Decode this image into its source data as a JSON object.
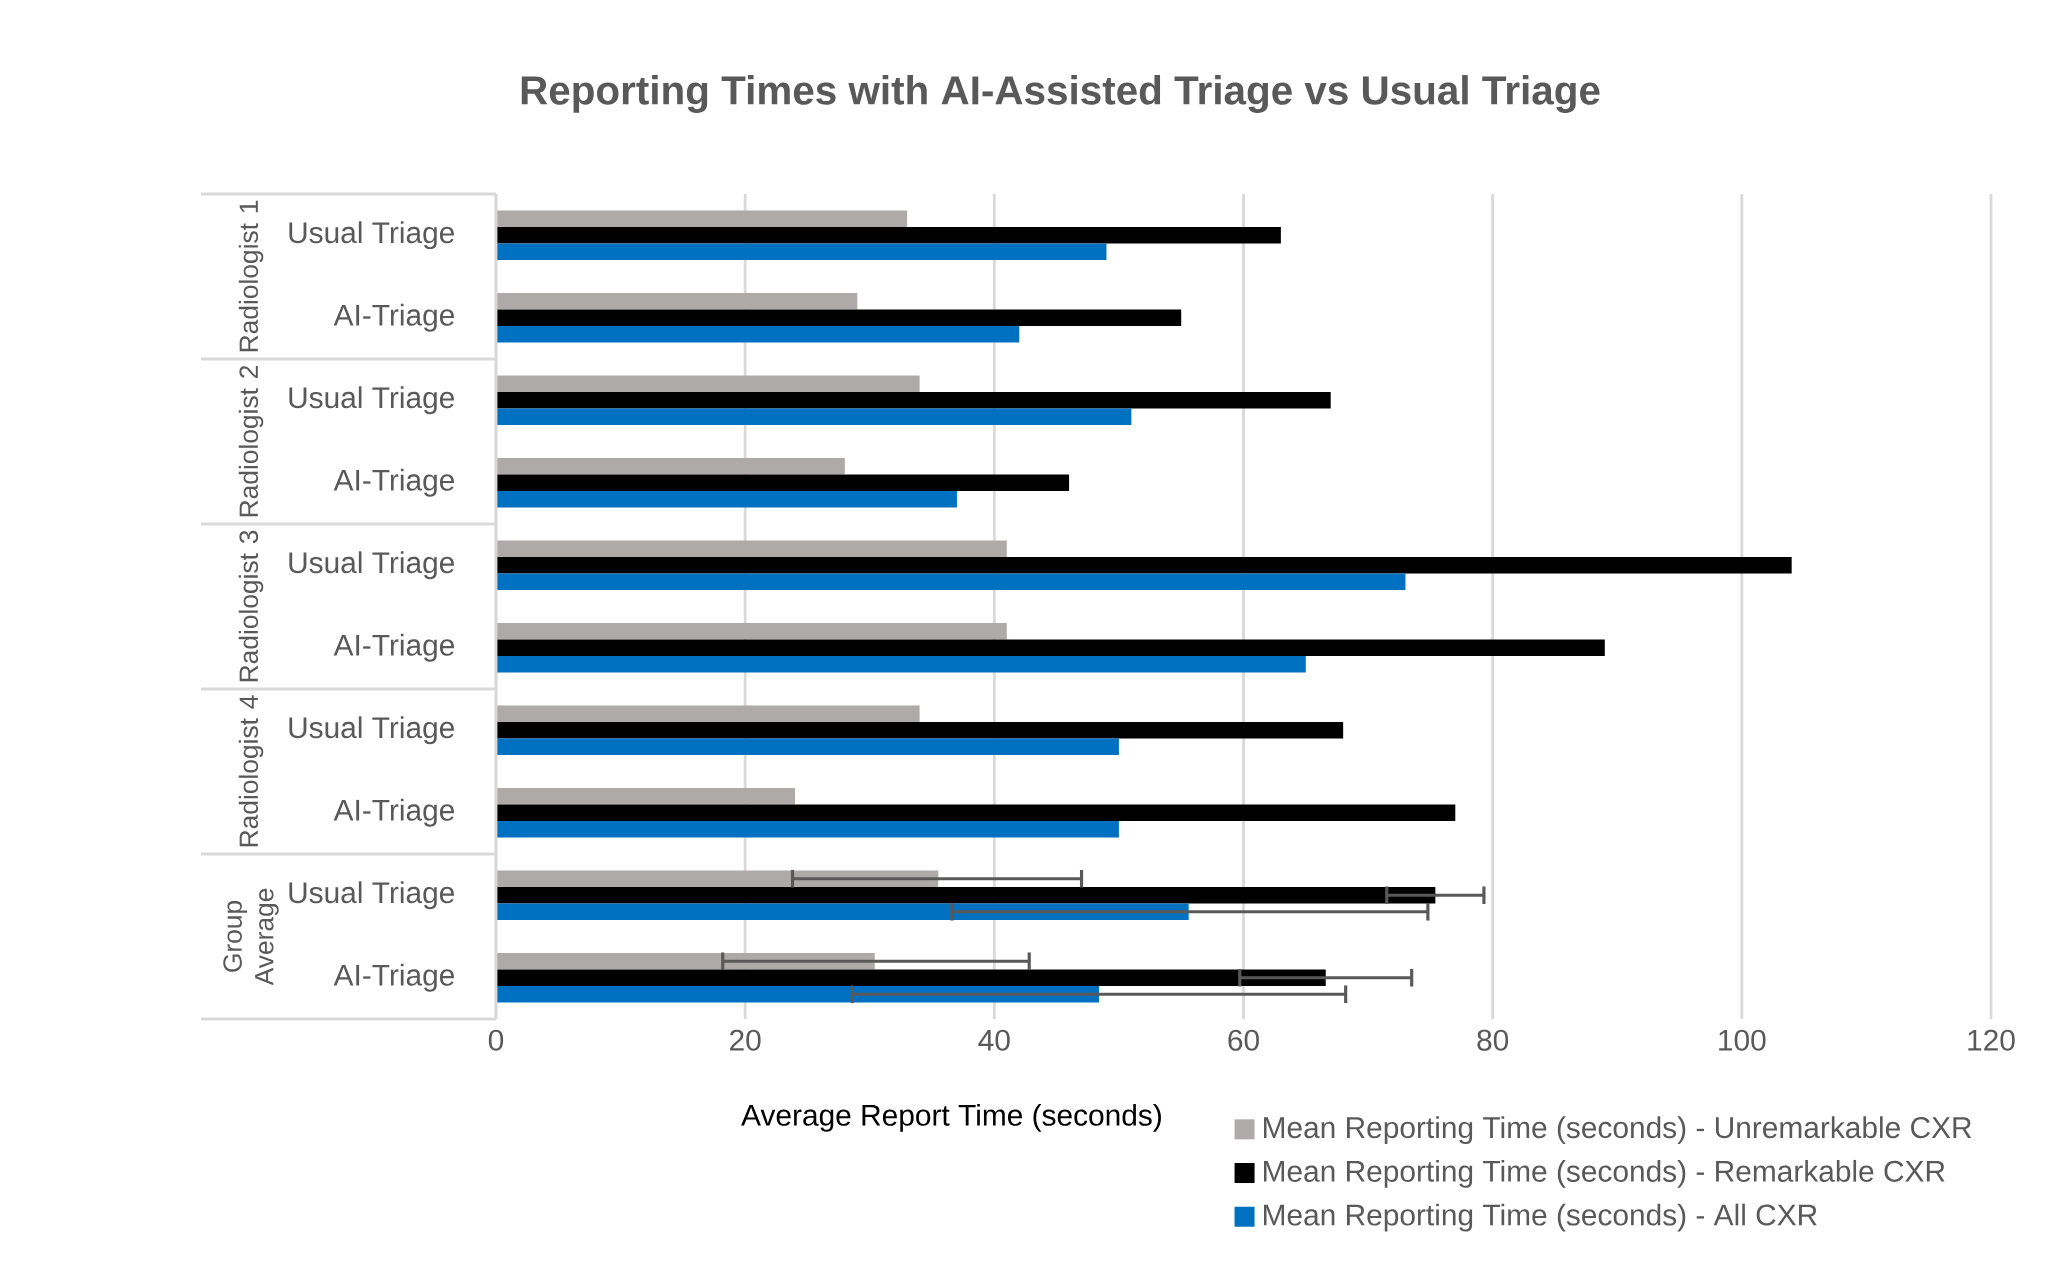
{
  "chart_data": {
    "type": "bar",
    "orientation": "horizontal",
    "title": "Reporting Times with AI-Assisted Triage vs Usual Triage",
    "xlabel": "Average Report Time (seconds)",
    "categories": [
      "Usual Triage",
      "AI-Triage",
      "Usual Triage",
      "AI-Triage",
      "Usual Triage",
      "AI-Triage",
      "Usual Triage",
      "AI-Triage",
      "Usual Triage",
      "AI-Triage"
    ],
    "annotations": [
      "Radiologist 1",
      "Radiologist 2",
      "Radiologist 3",
      "Radiologist 4",
      "Group Average"
    ],
    "series": [
      {
        "name": "Mean Reporting Time (seconds) - Unremarkable CXR",
        "color": "#aeaaaa",
        "values": [
          33,
          29,
          34,
          28,
          41,
          41,
          34,
          24,
          35.5,
          30.4
        ],
        "errors": [
          null,
          null,
          null,
          null,
          null,
          null,
          null,
          null,
          [
            23.8,
            47
          ],
          [
            18.2,
            42.8
          ]
        ]
      },
      {
        "name": "Mean Reporting Time (seconds) - Remarkable CXR",
        "color": "#000000",
        "values": [
          63,
          55,
          67,
          46,
          104,
          89,
          68,
          77,
          75.4,
          66.6
        ],
        "errors": [
          null,
          null,
          null,
          null,
          null,
          null,
          null,
          null,
          [
            71.5,
            79.3
          ],
          [
            59.7,
            73.5
          ]
        ]
      },
      {
        "name": "Mean Reporting Time (seconds) - All CXR",
        "color": "#0070c0",
        "values": [
          49,
          42,
          51,
          37,
          73,
          65,
          50,
          50,
          55.6,
          48.4
        ],
        "errors": [
          null,
          null,
          null,
          null,
          null,
          null,
          null,
          null,
          [
            36.6,
            74.8
          ],
          [
            28.6,
            68.2
          ]
        ]
      }
    ],
    "xlim": [
      0,
      120
    ],
    "xticks": [
      0,
      20,
      40,
      60,
      80,
      100,
      120
    ],
    "grid": "x",
    "legend": "bottom right"
  }
}
